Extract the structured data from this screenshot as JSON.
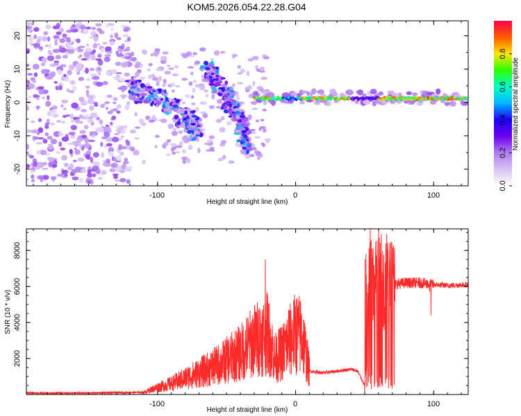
{
  "title": "KOM5.2026.054.22.28.G04",
  "colors": {
    "snr_line": "#ff2a2a",
    "axis": "#000000",
    "background": "#ffffff"
  },
  "chart_data": [
    {
      "type": "heatmap",
      "title": "KOM5.2026.054.22.28.G04",
      "xlabel": "Height of straight line (km)",
      "ylabel": "Frequency (Hz)",
      "xlim": [
        -195,
        125
      ],
      "ylim": [
        -25,
        24.5
      ],
      "x_ticks": [
        "-100",
        "0",
        "100"
      ],
      "y_ticks": [
        "-20",
        "-10",
        "0",
        "10",
        "20"
      ],
      "grid": false,
      "colorbar": {
        "label": "Normalized spectral amplitude",
        "range": [
          0,
          1
        ],
        "ticks": [
          "0.0",
          "0.2",
          "0.4",
          "0.6",
          "0.8"
        ],
        "colormap": [
          "#ffffff",
          "#d8c2f4",
          "#b07cf0",
          "#6d00ee",
          "#1d00ff",
          "#00b4ff",
          "#00ffc8",
          "#2aff00",
          "#ffe600",
          "#ff5a00",
          "#ff0050"
        ]
      },
      "features": [
        {
          "desc": "diffuse scatter",
          "x_range": [
            -195,
            -120
          ],
          "f_range": [
            -24,
            24
          ],
          "amp": 0.18
        },
        {
          "desc": "descending trace",
          "points": [
            [
              -120,
              4
            ],
            [
              -100,
              2
            ],
            [
              -80,
              -5
            ],
            [
              -70,
              -8
            ]
          ],
          "amp": 0.45
        },
        {
          "desc": "descending trace",
          "points": [
            [
              -65,
              10
            ],
            [
              -50,
              2
            ],
            [
              -40,
              -6
            ],
            [
              -35,
              -12
            ]
          ],
          "amp": 0.45
        },
        {
          "desc": "signal tone",
          "x_range": [
            -30,
            125
          ],
          "f": 1.5,
          "amp": 0.9
        }
      ]
    },
    {
      "type": "line",
      "xlabel": "Height of straight line (km)",
      "ylabel": "SNR (10 * v/v)",
      "xlim": [
        -195,
        125
      ],
      "ylim": [
        0,
        9200
      ],
      "x_ticks": [
        "-100",
        "0",
        "100"
      ],
      "y_ticks": [
        "2000",
        "4000",
        "6000",
        "8000"
      ],
      "grid": false,
      "series": [
        {
          "color": "#ff2a2a",
          "profile": [
            [
              -195,
              80
            ],
            [
              -150,
              80
            ],
            [
              -110,
              120
            ],
            [
              -100,
              400
            ],
            [
              -90,
              600
            ],
            [
              -80,
              900
            ],
            [
              -70,
              1200
            ],
            [
              -60,
              1500
            ],
            [
              -50,
              1900
            ],
            [
              -40,
              2300
            ],
            [
              -30,
              3000
            ],
            [
              -20,
              3400
            ],
            [
              -15,
              2000
            ],
            [
              -10,
              2300
            ],
            [
              -5,
              2900
            ],
            [
              0,
              3400
            ],
            [
              5,
              3200
            ],
            [
              10,
              1300
            ],
            [
              20,
              1200
            ],
            [
              30,
              1300
            ],
            [
              40,
              1400
            ],
            [
              45,
              1300
            ],
            [
              50,
              500
            ],
            [
              53,
              5600
            ],
            [
              56,
              6500
            ],
            [
              60,
              6800
            ],
            [
              65,
              6000
            ],
            [
              70,
              6100
            ],
            [
              80,
              6200
            ],
            [
              90,
              6200
            ],
            [
              100,
              6100
            ],
            [
              110,
              6050
            ],
            [
              125,
              6100
            ]
          ],
          "spikes": [
            [
              -22,
              7500
            ],
            [
              -5,
              4700
            ],
            [
              2,
              4300
            ],
            [
              54,
              9200
            ],
            [
              58,
              8500
            ],
            [
              62,
              8900
            ],
            [
              66,
              8900
            ],
            [
              71,
              6800
            ],
            [
              97,
              5700
            ],
            [
              98,
              4400
            ]
          ]
        }
      ]
    }
  ]
}
